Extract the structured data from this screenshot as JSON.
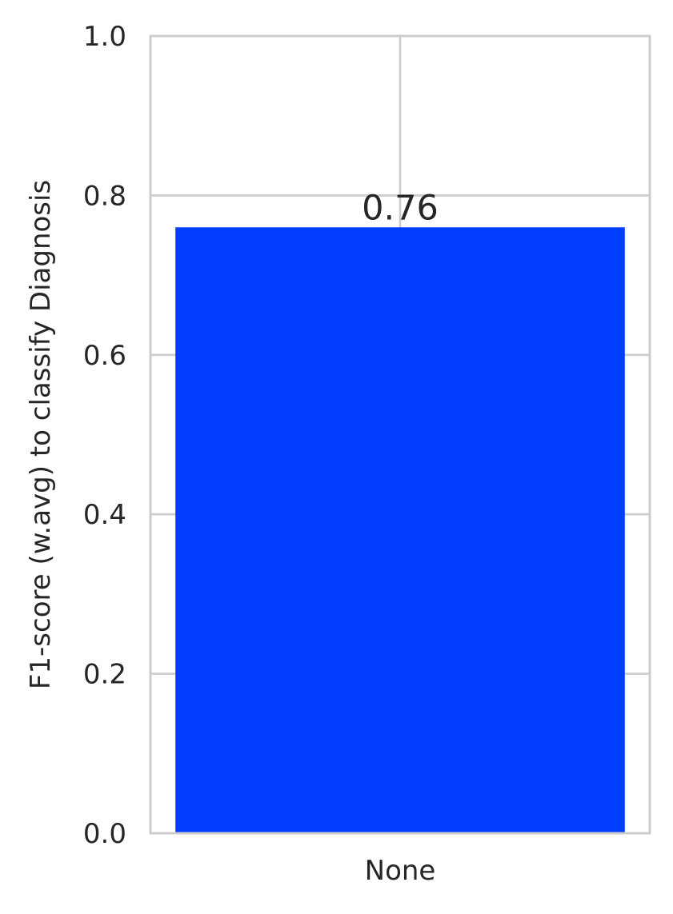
{
  "chart_data": {
    "type": "bar",
    "categories": [
      "None"
    ],
    "values": [
      0.76
    ],
    "data_labels": [
      "0.76"
    ],
    "title": "",
    "xlabel": "",
    "ylabel": "F1-score (w.avg) to classify Diagnosis",
    "ylim": [
      0,
      1.0
    ],
    "yticks": [
      0.0,
      0.2,
      0.4,
      0.6,
      0.8,
      1.0
    ],
    "ytick_labels": [
      "0.0",
      "0.2",
      "0.4",
      "0.6",
      "0.8",
      "1.0"
    ],
    "grid": true,
    "legend": "none",
    "bar_color": "#023EFF",
    "grid_color": "#CCCCCC",
    "text_color": "#262626"
  }
}
